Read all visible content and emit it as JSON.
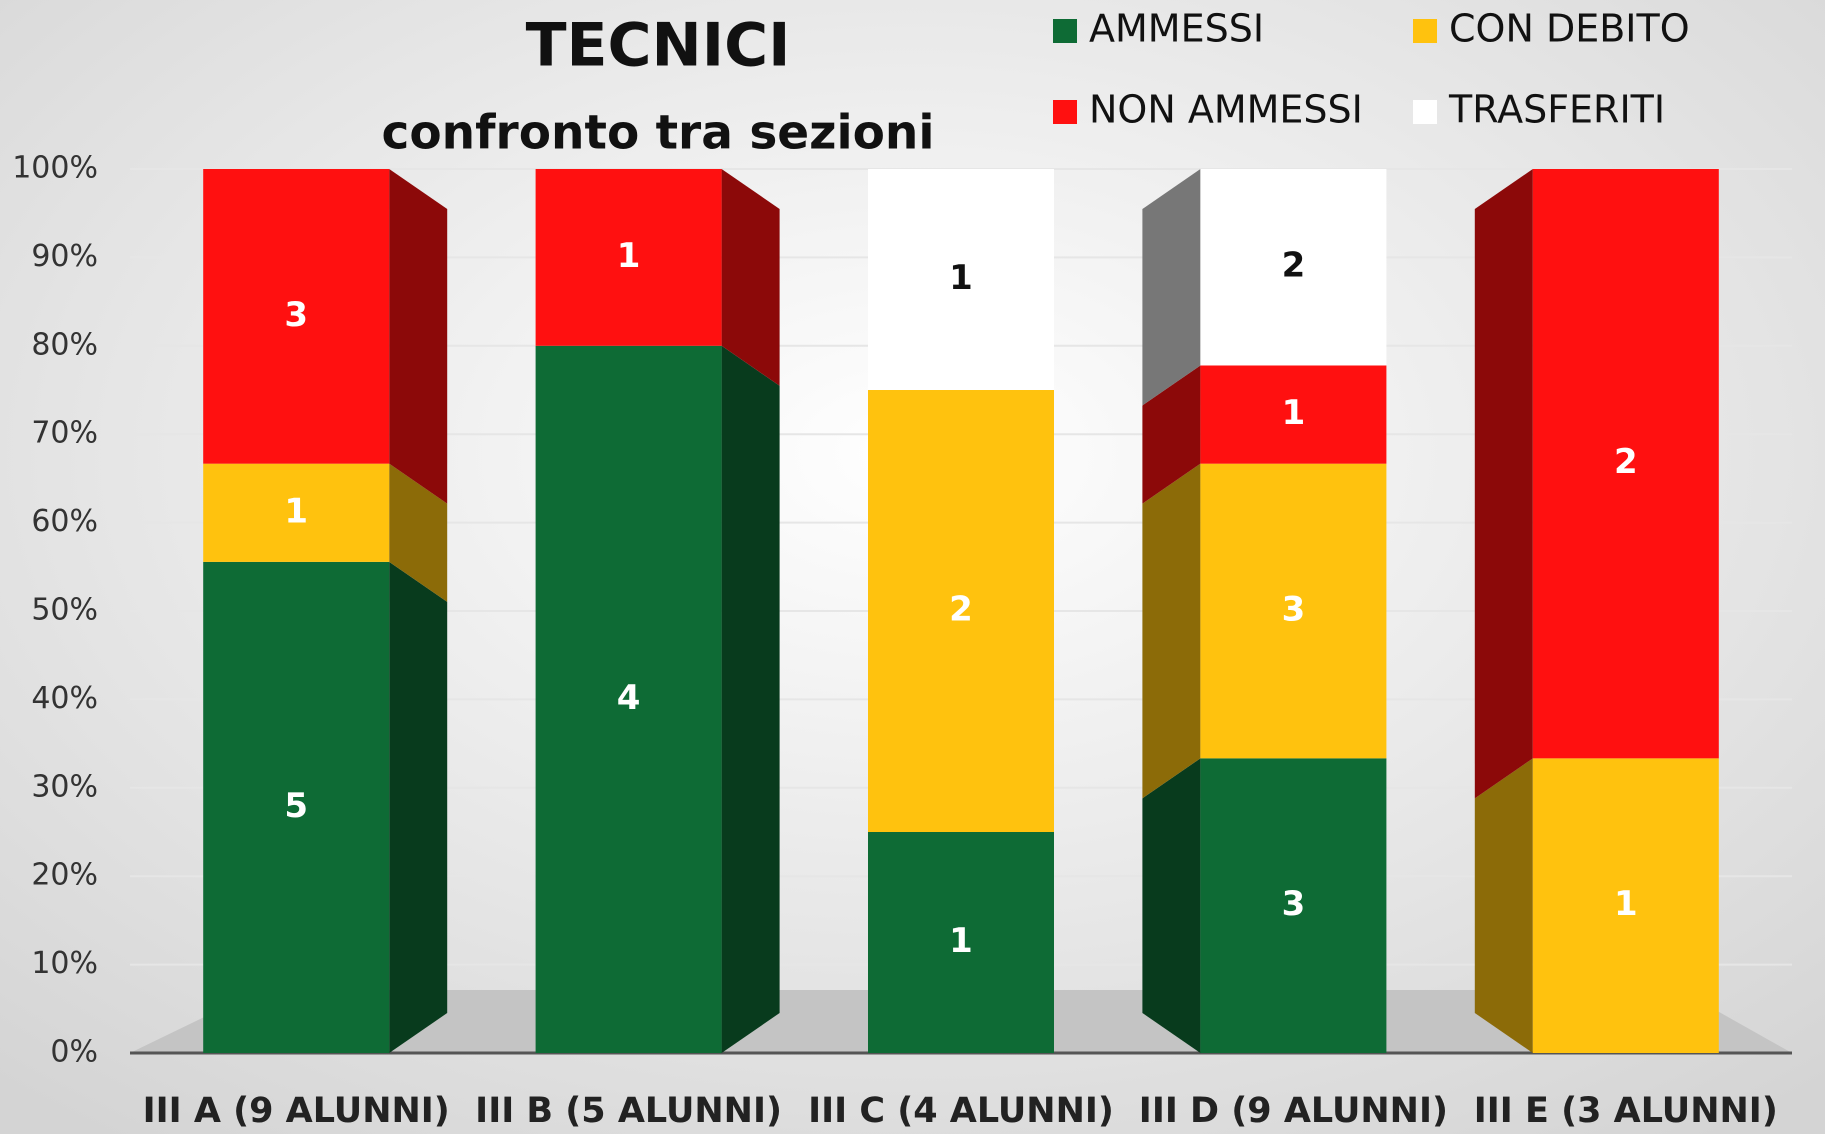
{
  "chart_data": {
    "type": "bar",
    "stacking": "percent",
    "title": "TECNICI",
    "subtitle": "confronto tra sezioni",
    "categories": [
      "III A  (9 ALUNNI)",
      "III B  (5 ALUNNI)",
      "III C  (4 ALUNNI)",
      "III D  (9 ALUNNI)",
      "III E  (3 ALUNNI)"
    ],
    "series": [
      {
        "name": "AMMESSI",
        "color": "#0e6b35",
        "values": [
          5,
          4,
          1,
          3,
          0
        ]
      },
      {
        "name": "CON DEBITO",
        "color": "#ffc20e",
        "values": [
          1,
          0,
          2,
          3,
          1
        ]
      },
      {
        "name": "NON AMMESSI",
        "color": "#ff1010",
        "values": [
          3,
          1,
          0,
          1,
          2
        ]
      },
      {
        "name": "TRASFERITI",
        "color": "#ffffff",
        "values": [
          0,
          0,
          1,
          2,
          0
        ]
      }
    ],
    "ylim": [
      0,
      100
    ],
    "yticks": [
      {
        "value": 0,
        "label": "0%"
      },
      {
        "value": 10,
        "label": "10%"
      },
      {
        "value": 20,
        "label": "20%"
      },
      {
        "value": 30,
        "label": "30%"
      },
      {
        "value": 40,
        "label": "40%"
      },
      {
        "value": 50,
        "label": "50%"
      },
      {
        "value": 60,
        "label": "60%"
      },
      {
        "value": 70,
        "label": "70%"
      },
      {
        "value": 80,
        "label": "80%"
      },
      {
        "value": 90,
        "label": "90%"
      },
      {
        "value": 100,
        "label": "100%"
      }
    ],
    "grid": true,
    "legend": "top-right"
  }
}
